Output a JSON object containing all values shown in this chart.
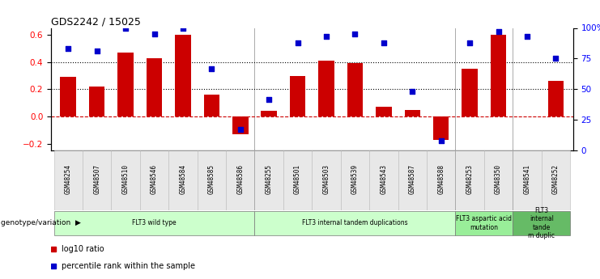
{
  "title": "GDS2242 / 15025",
  "samples": [
    "GSM48254",
    "GSM48507",
    "GSM48510",
    "GSM48546",
    "GSM48584",
    "GSM48585",
    "GSM48586",
    "GSM48255",
    "GSM48501",
    "GSM48503",
    "GSM48539",
    "GSM48543",
    "GSM48587",
    "GSM48588",
    "GSM48253",
    "GSM48350",
    "GSM48541",
    "GSM48252"
  ],
  "log10_ratio": [
    0.29,
    0.22,
    0.47,
    0.43,
    0.6,
    0.16,
    -0.13,
    0.04,
    0.3,
    0.41,
    0.39,
    0.07,
    0.05,
    -0.17,
    0.35,
    0.6,
    0.0,
    0.26
  ],
  "percentile_rank": [
    83,
    81,
    100,
    95,
    100,
    67,
    17,
    42,
    88,
    93,
    95,
    88,
    48,
    8,
    88,
    97,
    93,
    75
  ],
  "bar_color": "#cc0000",
  "dot_color": "#0000cc",
  "ylim_left": [
    -0.25,
    0.65
  ],
  "ylim_right": [
    0,
    100
  ],
  "yticks_left": [
    -0.2,
    0.0,
    0.2,
    0.4,
    0.6
  ],
  "yticks_right": [
    0,
    25,
    50,
    75,
    100
  ],
  "yticklabels_right": [
    "0",
    "25",
    "50",
    "75",
    "100%"
  ],
  "hlines_dotted": [
    0.2,
    0.4
  ],
  "hline_zero": 0.0,
  "groups": [
    {
      "label": "FLT3 wild type",
      "start": 0,
      "end": 7,
      "color": "#ccffcc"
    },
    {
      "label": "FLT3 internal tandem duplications",
      "start": 7,
      "end": 14,
      "color": "#ccffcc"
    },
    {
      "label": "FLT3 aspartic acid\nmutation",
      "start": 14,
      "end": 16,
      "color": "#99ee99"
    },
    {
      "label": "FLT3\ninternal\ntande\nm duplic",
      "start": 16,
      "end": 18,
      "color": "#66bb66"
    }
  ],
  "group_boundaries": [
    7,
    14,
    16
  ],
  "legend_items": [
    {
      "label": "log10 ratio",
      "color": "#cc0000"
    },
    {
      "label": "percentile rank within the sample",
      "color": "#0000cc"
    }
  ],
  "genotype_label": "genotype/variation"
}
